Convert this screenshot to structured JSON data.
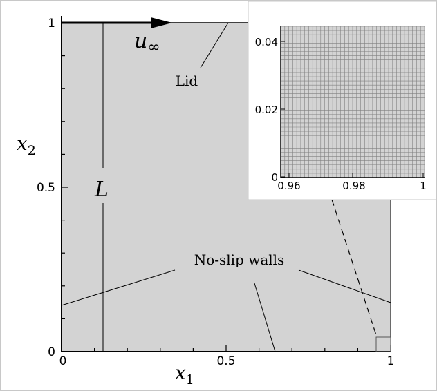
{
  "main_plot": {
    "x_axis": {
      "label": "x",
      "label_sub": "1",
      "ticks": [
        "0",
        "0.5",
        "1"
      ]
    },
    "y_axis": {
      "label": "x",
      "label_sub": "2",
      "ticks": [
        "0",
        "0.5",
        "1"
      ]
    },
    "velocity_label": "u",
    "velocity_sub": "∞",
    "length_label": "L",
    "lid_label": "Lid",
    "walls_label": "No-slip walls"
  },
  "inset": {
    "x_ticks": [
      "0.96",
      "0.98",
      "1"
    ],
    "y_ticks": [
      "0",
      "0.02",
      "0.04"
    ],
    "x_range": [
      0.955,
      1.0
    ],
    "y_range": [
      0,
      0.045
    ],
    "grid_lines": 36
  },
  "colors": {
    "domain_fill": "#d3d3d3",
    "grid_line": "#808080",
    "inset_background": "#d3d3d3"
  }
}
